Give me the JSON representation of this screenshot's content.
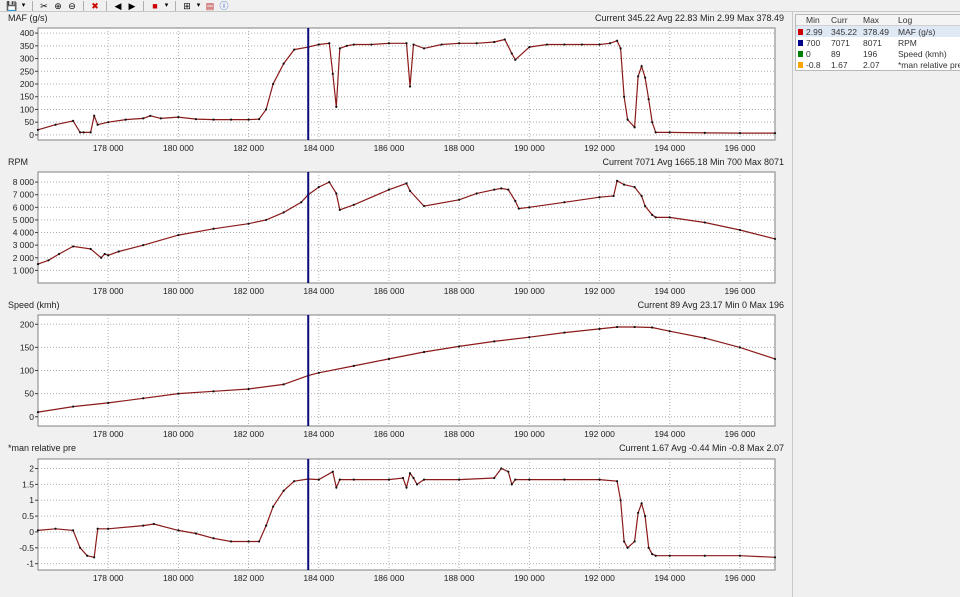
{
  "toolbar": {
    "buttons": [
      "save-icon",
      "dropdown-arrow-icon",
      "cut-icon",
      "zoom-in-icon",
      "zoom-out-icon",
      "delete-icon",
      "prev-icon",
      "next-icon",
      "color-icon",
      "dropdown-arrow-icon",
      "layout-icon",
      "dropdown-arrow-icon",
      "report-icon",
      "info-icon"
    ]
  },
  "legend": {
    "headers": {
      "min": "Min",
      "curr": "Curr",
      "max": "Max",
      "log": "Log"
    },
    "rows": [
      {
        "color": "#cc0000",
        "min": "2.99",
        "curr": "345.22",
        "max": "378.49",
        "log": "MAF (g/s)"
      },
      {
        "color": "#00008b",
        "min": "700",
        "curr": "7071",
        "max": "8071",
        "log": "RPM"
      },
      {
        "color": "#008000",
        "min": "0",
        "curr": "89",
        "max": "196",
        "log": "Speed (kmh)"
      },
      {
        "color": "#ffa500",
        "min": "-0.8",
        "curr": "1.67",
        "max": "2.07",
        "log": "*man relative pre"
      }
    ]
  },
  "charts": [
    {
      "name": "MAF (g/s)",
      "stats": "Current 345.22 Avg 22.83 Min 2.99 Max 378.49"
    },
    {
      "name": "RPM",
      "stats": "Current 7071 Avg 1665.18 Min 700 Max 8071"
    },
    {
      "name": "Speed (kmh)",
      "stats": "Current 89 Avg 23.17 Min 0 Max 196"
    },
    {
      "name": "*man relative pre",
      "stats": "Current 1.67 Avg -0.44 Min -0.8 Max 2.07"
    }
  ],
  "chart_data": [
    {
      "type": "line",
      "title": "MAF (g/s)",
      "cursor_x": 183700,
      "xlim": [
        176000,
        197000
      ],
      "x_ticks": [
        "178 000",
        "180 000",
        "182 000",
        "184 000",
        "186 000",
        "188 000",
        "190 000",
        "192 000",
        "194 000",
        "196 000"
      ],
      "x_tick_values": [
        178000,
        180000,
        182000,
        184000,
        186000,
        188000,
        190000,
        192000,
        194000,
        196000
      ],
      "ylim": [
        -20,
        420
      ],
      "y_ticks": [
        0,
        50,
        100,
        150,
        200,
        250,
        300,
        350,
        400
      ],
      "y_tick_labels": [
        "0",
        "50",
        "100",
        "150",
        "200",
        "250",
        "300",
        "350",
        "400"
      ],
      "grid": true,
      "color": "#8b1a1a",
      "x": [
        176000,
        176500,
        177000,
        177200,
        177300,
        177500,
        177600,
        177700,
        178000,
        178500,
        179000,
        179200,
        179500,
        180000,
        180500,
        181000,
        181500,
        182000,
        182300,
        182500,
        182700,
        183000,
        183300,
        183700,
        184000,
        184300,
        184400,
        184500,
        184600,
        184800,
        185000,
        185500,
        186000,
        186500,
        186600,
        186700,
        187000,
        187500,
        188000,
        188500,
        189000,
        189300,
        189500,
        189600,
        190000,
        190500,
        191000,
        191500,
        192000,
        192300,
        192500,
        192600,
        192700,
        192800,
        193000,
        193100,
        193200,
        193300,
        193400,
        193500,
        193600,
        194000,
        195000,
        196000,
        197000
      ],
      "y": [
        20,
        40,
        55,
        10,
        10,
        10,
        75,
        40,
        50,
        60,
        65,
        75,
        65,
        70,
        62,
        60,
        60,
        60,
        62,
        100,
        200,
        280,
        335,
        345,
        355,
        360,
        240,
        110,
        340,
        350,
        355,
        355,
        360,
        360,
        190,
        355,
        340,
        355,
        360,
        360,
        365,
        375,
        320,
        295,
        345,
        355,
        355,
        355,
        355,
        360,
        370,
        340,
        150,
        60,
        30,
        230,
        270,
        225,
        140,
        50,
        10,
        10,
        8,
        7,
        7
      ]
    },
    {
      "type": "line",
      "title": "RPM",
      "cursor_x": 183700,
      "xlim": [
        176000,
        197000
      ],
      "x_ticks": [
        "178 000",
        "180 000",
        "182 000",
        "184 000",
        "186 000",
        "188 000",
        "190 000",
        "192 000",
        "194 000",
        "196 000"
      ],
      "x_tick_values": [
        178000,
        180000,
        182000,
        184000,
        186000,
        188000,
        190000,
        192000,
        194000,
        196000
      ],
      "ylim": [
        0,
        8800
      ],
      "y_ticks": [
        1000,
        2000,
        3000,
        4000,
        5000,
        6000,
        7000,
        8000
      ],
      "y_tick_labels": [
        "1 000",
        "2 000",
        "3 000",
        "4 000",
        "5 000",
        "6 000",
        "7 000",
        "8 000"
      ],
      "grid": true,
      "color": "#8b1a1a",
      "x": [
        176000,
        176300,
        176600,
        177000,
        177500,
        177800,
        177900,
        178000,
        178300,
        179000,
        180000,
        181000,
        182000,
        182500,
        183000,
        183500,
        183700,
        184000,
        184300,
        184500,
        184600,
        185000,
        186000,
        186500,
        186600,
        187000,
        188000,
        188500,
        189000,
        189200,
        189400,
        189600,
        189700,
        190000,
        191000,
        192000,
        192400,
        192500,
        192700,
        193000,
        193200,
        193300,
        193500,
        193600,
        194000,
        195000,
        196000,
        197000
      ],
      "y": [
        1500,
        1800,
        2300,
        2900,
        2700,
        2000,
        2300,
        2200,
        2500,
        3000,
        3800,
        4300,
        4700,
        5000,
        5600,
        6400,
        7000,
        7600,
        8000,
        7100,
        5800,
        6200,
        7400,
        7900,
        7300,
        6100,
        6600,
        7100,
        7400,
        7500,
        7400,
        6500,
        5900,
        6000,
        6400,
        6800,
        6900,
        8100,
        7800,
        7600,
        6900,
        6100,
        5400,
        5200,
        5200,
        4800,
        4200,
        3500
      ]
    },
    {
      "type": "line",
      "title": "Speed (kmh)",
      "cursor_x": 183700,
      "xlim": [
        176000,
        197000
      ],
      "x_ticks": [
        "178 000",
        "180 000",
        "182 000",
        "184 000",
        "186 000",
        "188 000",
        "190 000",
        "192 000",
        "194 000",
        "196 000"
      ],
      "x_tick_values": [
        178000,
        180000,
        182000,
        184000,
        186000,
        188000,
        190000,
        192000,
        194000,
        196000
      ],
      "ylim": [
        -20,
        220
      ],
      "y_ticks": [
        0,
        50,
        100,
        150,
        200
      ],
      "y_tick_labels": [
        "0",
        "50",
        "100",
        "150",
        "200"
      ],
      "grid": true,
      "color": "#8b1a1a",
      "x": [
        176000,
        177000,
        178000,
        179000,
        180000,
        181000,
        182000,
        183000,
        183700,
        184000,
        185000,
        186000,
        187000,
        188000,
        189000,
        190000,
        191000,
        192000,
        192500,
        193000,
        193500,
        194000,
        195000,
        196000,
        197000
      ],
      "y": [
        10,
        22,
        30,
        40,
        50,
        55,
        60,
        70,
        89,
        95,
        110,
        125,
        140,
        152,
        163,
        172,
        182,
        190,
        194,
        194,
        193,
        185,
        170,
        150,
        125
      ]
    },
    {
      "type": "line",
      "title": "*man relative pre",
      "cursor_x": 183700,
      "xlim": [
        176000,
        197000
      ],
      "x_ticks": [
        "178 000",
        "180 000",
        "182 000",
        "184 000",
        "186 000",
        "188 000",
        "190 000",
        "192 000",
        "194 000",
        "196 000"
      ],
      "x_tick_values": [
        178000,
        180000,
        182000,
        184000,
        186000,
        188000,
        190000,
        192000,
        194000,
        196000
      ],
      "ylim": [
        -1.2,
        2.3
      ],
      "y_ticks": [
        -1,
        -0.5,
        0,
        0.5,
        1,
        1.5,
        2
      ],
      "y_tick_labels": [
        "-1",
        "-0.5",
        "0",
        "0.5",
        "1",
        "1.5",
        "2"
      ],
      "grid": true,
      "color": "#8b1a1a",
      "x": [
        176000,
        176500,
        177000,
        177200,
        177400,
        177600,
        177700,
        178000,
        179000,
        179300,
        180000,
        180500,
        181000,
        181500,
        182000,
        182300,
        182500,
        182700,
        183000,
        183300,
        183700,
        184000,
        184400,
        184500,
        184600,
        185000,
        186000,
        186400,
        186500,
        186600,
        186700,
        186800,
        187000,
        188000,
        189000,
        189200,
        189400,
        189500,
        189600,
        190000,
        191000,
        192000,
        192500,
        192600,
        192700,
        192800,
        193000,
        193100,
        193200,
        193300,
        193400,
        193500,
        193600,
        194000,
        195000,
        196000,
        197000
      ],
      "y": [
        0.05,
        0.1,
        0.05,
        -0.5,
        -0.75,
        -0.8,
        0.1,
        0.1,
        0.2,
        0.25,
        0.05,
        -0.05,
        -0.2,
        -0.3,
        -0.3,
        -0.3,
        0.2,
        0.8,
        1.3,
        1.6,
        1.67,
        1.65,
        1.9,
        1.4,
        1.65,
        1.65,
        1.65,
        1.7,
        1.4,
        1.85,
        1.7,
        1.5,
        1.65,
        1.65,
        1.7,
        2.0,
        1.9,
        1.5,
        1.65,
        1.65,
        1.65,
        1.65,
        1.6,
        1.0,
        -0.3,
        -0.5,
        -0.3,
        0.6,
        0.9,
        0.5,
        -0.5,
        -0.7,
        -0.75,
        -0.75,
        -0.75,
        -0.75,
        -0.8
      ]
    }
  ]
}
